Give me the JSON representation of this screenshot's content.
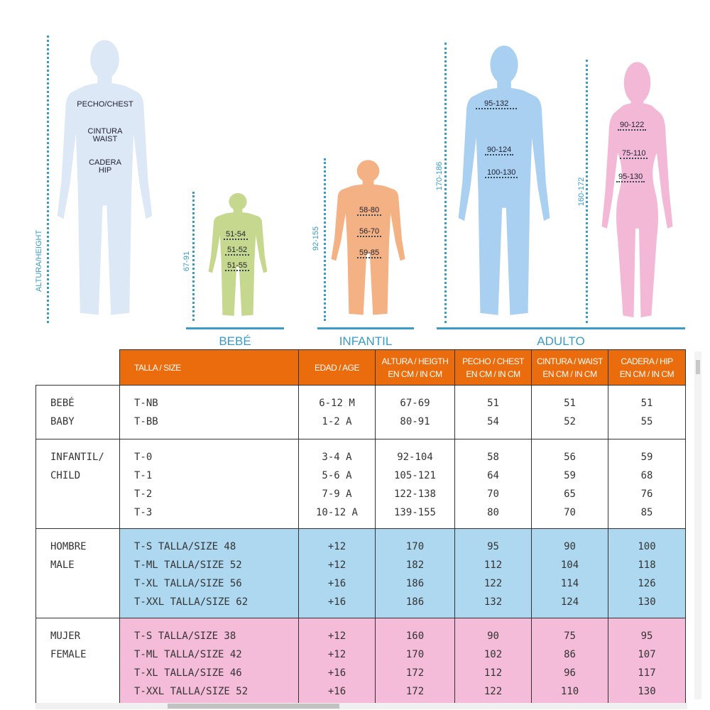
{
  "colors": {
    "accent": "#3a9bc6",
    "header": "#ea6c0c",
    "male": "#add8ef",
    "female": "#f4bcd9",
    "generic": "#dce8f5",
    "baby": "#c5d88e",
    "child": "#f4b183",
    "man": "#a9d0f0",
    "woman": "#f2b8d6"
  },
  "figures": {
    "generic": {
      "height_label": "ALTURA/HEIGHT",
      "chest": "PECHO/CHEST",
      "waist": "CINTURA\nWAIST",
      "hip": "CADERA\nHIP"
    },
    "baby": {
      "height": "67-91",
      "chest": "51-54",
      "waist": "51-52",
      "hip": "51-55"
    },
    "child": {
      "height": "92-155",
      "chest": "58-80",
      "waist": "56-70",
      "hip": "59-85"
    },
    "man": {
      "height": "170-186",
      "chest": "95-132",
      "waist": "90-124",
      "hip": "100-130"
    },
    "woman": {
      "height": "160-172",
      "chest": "90-122",
      "waist": "75-110",
      "hip": "95-130"
    }
  },
  "groups": {
    "bebe": "BEBÉ",
    "infantil": "INFANTIL",
    "adulto": "ADULTO"
  },
  "table": {
    "headers": {
      "size": "TALLA / SIZE",
      "age": "EDAD / AGE",
      "height": [
        "ALTURA / HEIGTH",
        "EN CM / IN CM"
      ],
      "chest": [
        "PECHO / CHEST",
        "EN CM / IN CM"
      ],
      "waist": [
        "CINTURA / WAIST",
        "EN CM / IN CM"
      ],
      "hip": [
        "CADERA / HIP",
        "EN CM / IN CM"
      ]
    },
    "sections": [
      {
        "label": [
          "BEBÉ",
          "BABY"
        ],
        "size": [
          "T-NB",
          "T-BB"
        ],
        "age": [
          "6-12 M",
          "1-2 A"
        ],
        "height": [
          "67-69",
          "80-91"
        ],
        "chest": [
          "51",
          "54"
        ],
        "waist": [
          "51",
          "52"
        ],
        "hip": [
          "51",
          "55"
        ]
      },
      {
        "label": [
          "INFANTIL/",
          "CHILD"
        ],
        "size": [
          "T-0",
          "T-1",
          "T-2",
          "T-3"
        ],
        "age": [
          "3-4 A",
          "5-6 A",
          "7-9 A",
          "10-12 A"
        ],
        "height": [
          "92-104",
          "105-121",
          "122-138",
          "139-155"
        ],
        "chest": [
          "58",
          "64",
          "70",
          "80"
        ],
        "waist": [
          "56",
          "59",
          "65",
          "70"
        ],
        "hip": [
          "59",
          "68",
          "76",
          "85"
        ]
      },
      {
        "label": [
          "HOMBRE",
          "MALE"
        ],
        "size": [
          "T-S TALLA/SIZE 48",
          "T-ML TALLA/SIZE 52",
          "T-XL TALLA/SIZE 56",
          "T-XXL TALLA/SIZE 62"
        ],
        "age": [
          "+12",
          "+12",
          "+16",
          "+16"
        ],
        "height": [
          "170",
          "182",
          "186",
          "186"
        ],
        "chest": [
          "95",
          "112",
          "122",
          "132"
        ],
        "waist": [
          "90",
          "104",
          "114",
          "124"
        ],
        "hip": [
          "100",
          "118",
          "126",
          "130"
        ]
      },
      {
        "label": [
          "MUJER",
          "FEMALE"
        ],
        "size": [
          "T-S TALLA/SIZE 38",
          "T-ML TALLA/SIZE 42",
          "T-XL TALLA/SIZE 46",
          "T-XXL TALLA/SIZE 52"
        ],
        "age": [
          "+12",
          "+12",
          "+16",
          "+16"
        ],
        "height": [
          "160",
          "170",
          "172",
          "172"
        ],
        "chest": [
          "90",
          "102",
          "112",
          "122"
        ],
        "waist": [
          "75",
          "86",
          "96",
          "110"
        ],
        "hip": [
          "95",
          "107",
          "117",
          "130"
        ]
      }
    ]
  }
}
